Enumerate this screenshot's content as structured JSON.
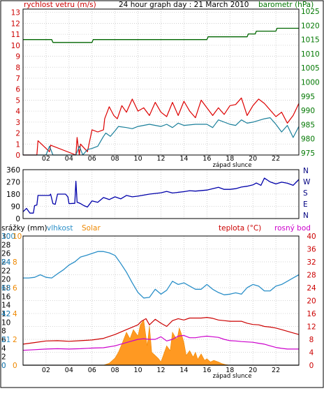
{
  "chart_data": [
    {
      "type": "line",
      "title": "24 hour graph day : 21 March 2010",
      "y_left_label": "rychlost vetru (m/s)",
      "y_right_label": "barometr (hPa)",
      "y_left_ticks": [
        "0",
        "1",
        "2",
        "3",
        "4",
        "5",
        "6",
        "7",
        "8",
        "9",
        "10",
        "11",
        "12",
        "13"
      ],
      "y_right_ticks": [
        "975",
        "980",
        "985",
        "990",
        "995",
        "1000",
        "1005",
        "1010",
        "1015",
        "1020",
        "1025"
      ],
      "x_ticks": [
        "02",
        "04",
        "06",
        "08",
        "10",
        "12",
        "14",
        "16",
        "18",
        "20",
        "22"
      ],
      "x_tick_hours": [
        2,
        4,
        6,
        8,
        10,
        12,
        14,
        16,
        18,
        20,
        22
      ],
      "sunset_label": "západ slunce",
      "sunset_hour": 18.2,
      "ylim_left": [
        0,
        13.3
      ],
      "ylim_right": [
        974.2,
        1025.8
      ],
      "grid": true,
      "colors": {
        "gust": "#dd0000",
        "wind": "#1a7f9a",
        "pressure": "#006600",
        "left_axis": "#cc0000",
        "right_axis": "#007700"
      },
      "series": [
        {
          "name": "barometr (hPa)",
          "axis": "right",
          "hours": [
            0,
            2.5,
            2.6,
            6,
            6.1,
            16,
            16.1,
            19.5,
            19.6,
            20.2,
            20.3,
            22,
            22.1,
            24
          ],
          "values": [
            1015,
            1015,
            1014,
            1014,
            1015,
            1015,
            1016,
            1016,
            1017,
            1017,
            1018,
            1018,
            1019,
            1019
          ]
        },
        {
          "name": "rychlost vetru (m/s)",
          "axis": "left",
          "hours": [
            0,
            0.5,
            2,
            2.3,
            2.6,
            4.6,
            4.9,
            5.2,
            5.6,
            6,
            6.5,
            7,
            7.2,
            7.6,
            8,
            8.3,
            9,
            9.5,
            10,
            11,
            12,
            12.5,
            13,
            13.5,
            14,
            15,
            16,
            16.5,
            17,
            18,
            18.5,
            19,
            19.5,
            20,
            21,
            21.5,
            22,
            22.5,
            23,
            23.5,
            24
          ],
          "values": [
            0,
            0,
            0,
            0.8,
            0,
            0,
            0.8,
            0,
            0.5,
            0.6,
            0.8,
            1.7,
            2.0,
            1.7,
            2.2,
            2.6,
            2.5,
            2.4,
            2.6,
            2.8,
            2.6,
            2.8,
            2.5,
            2.9,
            2.7,
            2.8,
            2.8,
            2.5,
            3.2,
            2.8,
            2.7,
            3.2,
            2.9,
            3.0,
            3.3,
            3.4,
            2.8,
            2.1,
            2.7,
            1.6,
            2.6
          ]
        },
        {
          "name": "náraz",
          "axis": "left",
          "hours": [
            0,
            1.2,
            1.3,
            2.3,
            2.4,
            4.6,
            4.7,
            4.9,
            5.0,
            5.6,
            5.8,
            6,
            6.5,
            7,
            7.1,
            7.5,
            7.9,
            8.2,
            8.6,
            9,
            9.5,
            10,
            10.5,
            11,
            11.5,
            12,
            12.5,
            13,
            13.5,
            14,
            14.5,
            15,
            15.5,
            16,
            16.5,
            17,
            17.5,
            18,
            18.5,
            19,
            19.5,
            20,
            20.5,
            21,
            21.5,
            22,
            22.5,
            23,
            23.5,
            24
          ],
          "values": [
            0,
            0,
            1.3,
            0.3,
            0.9,
            0,
            1.6,
            0,
            1.0,
            0.3,
            1.3,
            2.3,
            2.1,
            2.3,
            3.3,
            4.4,
            3.6,
            3.3,
            4.5,
            3.9,
            5.1,
            4.0,
            4.3,
            3.6,
            4.8,
            3.9,
            3.5,
            4.8,
            3.6,
            4.9,
            4.0,
            3.4,
            5.0,
            4.3,
            3.6,
            4.3,
            3.7,
            4.5,
            4.6,
            5.2,
            3.6,
            4.5,
            5.1,
            4.7,
            4.1,
            3.5,
            3.9,
            2.9,
            3.6,
            4.7
          ]
        }
      ]
    },
    {
      "type": "line",
      "y_ticks": [
        "360",
        "270",
        "180",
        "90",
        "0"
      ],
      "ylim": [
        0,
        360
      ],
      "direction_labels": [
        "N",
        "W",
        "S",
        "E",
        "N"
      ],
      "x_ticks": [
        "02",
        "04",
        "06",
        "08",
        "10",
        "12",
        "14",
        "16",
        "18",
        "20",
        "22"
      ],
      "x_tick_hours": [
        2,
        4,
        6,
        8,
        10,
        12,
        14,
        16,
        18,
        20,
        22
      ],
      "sunset_label": "západ slunce",
      "sunset_hour": 18.2,
      "grid": true,
      "colors": {
        "direction": "#0000aa"
      },
      "series": [
        {
          "name": "směr větru",
          "hours": [
            0,
            0.3,
            0.6,
            0.9,
            1.0,
            1.2,
            1.3,
            2.3,
            2.4,
            2.6,
            2.8,
            3.0,
            3.7,
            3.9,
            4.0,
            4.5,
            4.6,
            4.7,
            4.8,
            5.0,
            5.3,
            5.6,
            6,
            6.5,
            7,
            7.5,
            8,
            8.5,
            9,
            9.5,
            10,
            11,
            12,
            12.5,
            13,
            14,
            14.5,
            15,
            16,
            17,
            17.5,
            18,
            18.5,
            19,
            19.5,
            20,
            20.3,
            20.7,
            21,
            21.5,
            22,
            22.5,
            23,
            23.5,
            24
          ],
          "values": [
            50,
            75,
            40,
            40,
            95,
            100,
            170,
            170,
            180,
            110,
            105,
            180,
            180,
            160,
            110,
            112,
            275,
            120,
            118,
            110,
            95,
            85,
            130,
            120,
            155,
            140,
            160,
            145,
            170,
            160,
            165,
            180,
            190,
            200,
            188,
            198,
            205,
            202,
            210,
            230,
            215,
            215,
            220,
            232,
            238,
            248,
            262,
            245,
            298,
            270,
            255,
            268,
            260,
            245,
            288
          ]
        }
      ]
    },
    {
      "type": "line",
      "labels": {
        "rain": "srážky (mm)",
        "humidity": "vlhkost",
        "solar": "Solar",
        "temperature": "teplota (°C)",
        "dew": "rosný bod"
      },
      "axis_rain_ticks": [
        "0",
        "2",
        "4",
        "6",
        "8",
        "10",
        "12",
        "14",
        "16",
        "18",
        "20",
        "22",
        "24",
        "26",
        "28",
        "30"
      ],
      "axis_humidity_ticks": [
        "0",
        "10",
        "21",
        "31",
        "42",
        "52",
        "63",
        "73",
        "84",
        "94",
        "100"
      ],
      "axis_solar_ticks": [
        "0",
        "1",
        "2",
        "3",
        "4",
        "5",
        "6",
        "7",
        "8",
        "9",
        "10"
      ],
      "axis_temp_ticks": [
        "0",
        "4",
        "8",
        "12",
        "16",
        "20",
        "24",
        "28",
        "32",
        "36",
        "40"
      ],
      "x_ticks": [
        "02",
        "04",
        "06",
        "08",
        "10",
        "12",
        "14",
        "16",
        "18",
        "20",
        "22"
      ],
      "x_tick_hours": [
        2,
        4,
        6,
        8,
        10,
        12,
        14,
        16,
        18,
        20,
        22
      ],
      "sunset_label": "západ slunce",
      "sunset_hour": 18.2,
      "ylim_temp": [
        0,
        40
      ],
      "grid": true,
      "colors": {
        "humidity": "#2a8fc8",
        "temperature": "#cc0000",
        "dew": "#cc00cc",
        "solar": "#ff9922",
        "rain": "#000000",
        "rain_axis": "#000000",
        "humidity_axis": "#2a8fc8",
        "solar_axis": "#ee8800",
        "temp_axis": "#cc0000"
      },
      "series": [
        {
          "name": "vlhkost",
          "axis": "temp_scale",
          "hours": [
            0,
            0.5,
            1.0,
            1.5,
            2.0,
            2.5,
            3.0,
            3.5,
            4.0,
            4.5,
            5.0,
            5.5,
            6.0,
            6.5,
            7.0,
            7.5,
            8.0,
            8.5,
            9.0,
            9.5,
            10.0,
            10.5,
            11.0,
            11.5,
            12.0,
            12.5,
            13.0,
            13.5,
            14.0,
            14.5,
            15.0,
            15.5,
            16.0,
            16.5,
            17.0,
            17.5,
            18.0,
            18.5,
            19.0,
            19.5,
            20.0,
            20.5,
            21.0,
            21.5,
            22.0,
            22.5,
            23.0,
            23.5,
            24.0
          ],
          "values": [
            27.0,
            27.0,
            27.2,
            28.0,
            27.2,
            27.0,
            28.3,
            29.5,
            31.0,
            32.0,
            33.5,
            34.0,
            34.6,
            35.2,
            35.2,
            34.8,
            34.0,
            31.5,
            28.8,
            25.5,
            22.5,
            20.8,
            21.0,
            23.5,
            22.0,
            23.2,
            26.0,
            25.0,
            25.5,
            24.5,
            23.5,
            23.5,
            25.0,
            23.5,
            22.5,
            21.8,
            22.0,
            22.4,
            22.0,
            24.0,
            25.0,
            24.5,
            23.0,
            23.0,
            24.5,
            25.0,
            26.0,
            27.0,
            28.0
          ]
        },
        {
          "name": "teplota (°C)",
          "axis": "temp_scale",
          "hours": [
            0,
            1,
            2,
            3,
            4,
            5,
            6,
            7,
            8,
            9,
            10,
            10.3,
            10.7,
            11,
            11.5,
            12,
            12.5,
            13,
            13.5,
            14,
            14.5,
            15,
            15.5,
            16,
            16.5,
            17,
            17.5,
            18,
            18.5,
            19,
            19.5,
            20,
            20.5,
            21,
            21.5,
            22,
            22.5,
            23,
            23.5,
            24
          ],
          "values": [
            6.5,
            7.0,
            7.5,
            7.6,
            7.4,
            7.6,
            7.8,
            8.3,
            9.5,
            11.0,
            12.5,
            13.6,
            14.4,
            12.5,
            14.2,
            13.0,
            12.0,
            13.8,
            14.4,
            14.0,
            14.6,
            14.6,
            14.6,
            14.8,
            14.5,
            14.0,
            13.8,
            13.6,
            13.6,
            13.6,
            13.0,
            12.6,
            12.5,
            12.0,
            11.8,
            11.5,
            11.0,
            10.5,
            10.0,
            9.5
          ]
        },
        {
          "name": "rosný bod",
          "axis": "temp_scale",
          "hours": [
            0,
            1,
            2,
            3,
            4,
            5,
            6,
            7,
            8,
            9,
            10,
            10.5,
            11,
            11.5,
            12,
            12.5,
            13,
            13.5,
            14,
            14.5,
            15,
            15.5,
            16,
            16.5,
            17,
            17.5,
            18,
            18.5,
            19,
            19.5,
            20,
            20.5,
            21,
            21.5,
            22,
            22.5,
            23,
            23.5,
            24
          ],
          "values": [
            4.6,
            4.8,
            5.0,
            5.1,
            5.0,
            5.1,
            5.3,
            5.4,
            6.0,
            7.0,
            8.0,
            8.2,
            8.0,
            8.0,
            8.8,
            7.5,
            8.0,
            9.0,
            9.2,
            8.5,
            8.5,
            8.8,
            9.0,
            8.8,
            8.6,
            8.0,
            7.6,
            7.5,
            7.3,
            7.2,
            7.1,
            6.8,
            6.5,
            6.0,
            5.5,
            5.2,
            5.0,
            5.0,
            5.0
          ]
        },
        {
          "name": "Solar",
          "axis": "temp_scale",
          "hours": [
            0,
            7.0,
            7.5,
            8.0,
            8.3,
            8.6,
            9.0,
            9.3,
            9.6,
            10.0,
            10.2,
            10.5,
            10.8,
            11.0,
            11.2,
            11.5,
            11.8,
            12.0,
            12.2,
            12.5,
            12.8,
            13.0,
            13.2,
            13.4,
            13.6,
            13.8,
            14.0,
            14.2,
            14.5,
            14.8,
            15.0,
            15.2,
            15.5,
            15.8,
            16.0,
            16.3,
            16.6,
            17.0,
            17.3,
            17.6,
            18.0,
            24
          ],
          "values": [
            0,
            0,
            0.6,
            2.2,
            4.0,
            6.5,
            10.2,
            8.2,
            11.0,
            9.0,
            12.5,
            14.0,
            6.0,
            12.2,
            4.0,
            3.0,
            2.0,
            1.0,
            3.0,
            6.0,
            4.5,
            10.2,
            9.0,
            8.0,
            11.5,
            9.5,
            7.0,
            3.0,
            4.5,
            2.5,
            4.0,
            1.8,
            3.5,
            1.5,
            2.0,
            1.0,
            1.5,
            1.0,
            0.5,
            0.2,
            0,
            0
          ]
        },
        {
          "name": "srážky (mm)",
          "axis": "temp_scale",
          "hours": [
            0,
            24
          ],
          "values": [
            0,
            0
          ]
        }
      ]
    }
  ]
}
